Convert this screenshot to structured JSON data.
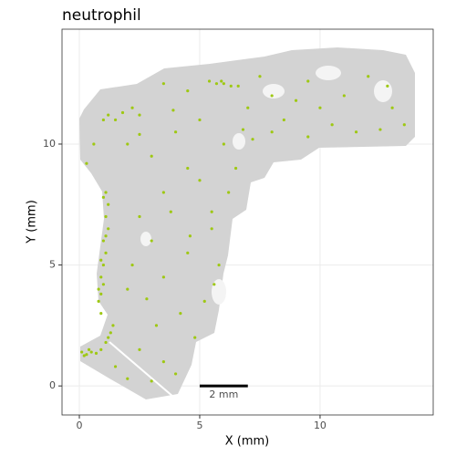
{
  "chart_data": {
    "type": "scatter",
    "title": "neutrophil",
    "x_label": "X (mm)",
    "y_label": "Y (mm)",
    "xlim": [
      -0.72,
      14.7
    ],
    "ylim": [
      -1.2,
      14.75
    ],
    "xticks": [
      0,
      5,
      10
    ],
    "yticks": [
      0,
      5,
      10
    ],
    "grid": true,
    "color": "#9ec813",
    "x": [
      0.1,
      0.3,
      0.5,
      0.7,
      0.9,
      0.4,
      0.2,
      1.1,
      1.3,
      1.4,
      1.2,
      0.9,
      0.8,
      0.8,
      0.9,
      1.0,
      1.1,
      1.0,
      1.2,
      1.1,
      1.2,
      1.1,
      0.9,
      1.0,
      0.9,
      1.1,
      1.0,
      5.4,
      5.7,
      6.0,
      6.3,
      6.6,
      5.9,
      1.2,
      1.5,
      1.8,
      2.2,
      2.5,
      1.0,
      0.3,
      0.6,
      2,
      3,
      4,
      5,
      6,
      7,
      8,
      4.5,
      3.5,
      2.5,
      3,
      2.2,
      3.5,
      4.5,
      5.5,
      5.8,
      5.2,
      4.2,
      3.2,
      2.5,
      3.5,
      3,
      4,
      2,
      1.5,
      5,
      6.2,
      5.5,
      6.5,
      7.2,
      8.5,
      9,
      10,
      11,
      12,
      12.8,
      13.5,
      13,
      10.5,
      9.5,
      8,
      11.5,
      12.5,
      7.5,
      9.5,
      4.5,
      3.5,
      2.5,
      3.8,
      4.6,
      5.6,
      4.8,
      2.8,
      2,
      3.9,
      6.8
    ],
    "values": [
      1.4,
      1.3,
      1.4,
      1.35,
      1.5,
      1.5,
      1.25,
      1.8,
      2.2,
      2.5,
      2.0,
      3.0,
      3.5,
      4.0,
      4.5,
      5.0,
      5.5,
      6.0,
      6.5,
      7.0,
      7.5,
      8.0,
      3.8,
      4.2,
      5.2,
      6.2,
      7.8,
      12.6,
      12.5,
      12.5,
      12.4,
      12.4,
      12.6,
      11.2,
      11.0,
      11.3,
      11.5,
      11.2,
      11.0,
      9.2,
      10.0,
      10,
      9.5,
      10.5,
      11,
      10,
      11.5,
      12,
      9,
      8,
      7,
      6,
      5,
      4.5,
      5.5,
      6.5,
      5,
      3.5,
      3,
      2.5,
      1.5,
      1,
      0.2,
      0.5,
      0.3,
      0.8,
      8.5,
      8,
      7.2,
      9,
      10.2,
      11,
      11.8,
      11.5,
      12,
      12.8,
      12.4,
      10.8,
      11.5,
      10.8,
      10.3,
      10.5,
      10.5,
      10.6,
      12.8,
      12.6,
      12.2,
      12.5,
      10.4,
      7.2,
      6.2,
      4.2,
      2,
      3.6,
      4,
      11.4,
      10.6
    ],
    "scale_bar": {
      "label": "2 mm",
      "x": [
        5,
        7
      ],
      "y": 0
    }
  }
}
